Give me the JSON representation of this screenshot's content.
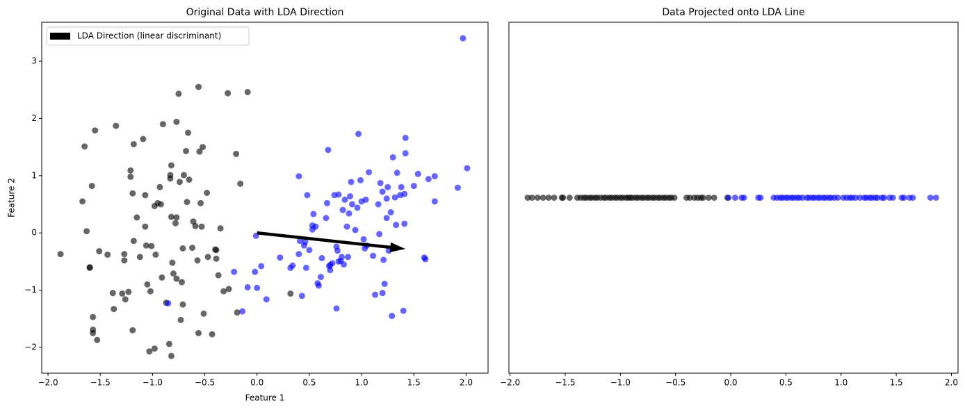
{
  "chart_data": [
    {
      "type": "scatter",
      "title": "Original Data with LDA Direction",
      "xlabel": "Feature 1",
      "ylabel": "Feature 2",
      "xlim": [
        -2.06,
        2.21
      ],
      "ylim": [
        -2.45,
        3.68
      ],
      "xticks": [
        {
          "value": -2,
          "label": "−2.0"
        },
        {
          "value": -1.5,
          "label": "−1.5"
        },
        {
          "value": -1,
          "label": "−1.0"
        },
        {
          "value": -0.5,
          "label": "−0.5"
        },
        {
          "value": 0,
          "label": "0.0"
        },
        {
          "value": 0.5,
          "label": "0.5"
        },
        {
          "value": 1,
          "label": "1.0"
        },
        {
          "value": 1.5,
          "label": "1.5"
        },
        {
          "value": 2,
          "label": "2.0"
        }
      ],
      "yticks": [
        {
          "value": -2,
          "label": "−2"
        },
        {
          "value": -1,
          "label": "−1"
        },
        0,
        1,
        2,
        3
      ],
      "legend": "upper left",
      "arrow": {
        "label": "LDA Direction (linear discriminant)",
        "color": "#000000",
        "x": [
          0,
          1.42
        ],
        "y": [
          0,
          -0.28
        ]
      },
      "series": [
        {
          "color": "#000000",
          "x": [
            -1.88,
            -1.67,
            -1.65,
            -1.63,
            -1.6,
            -1.6,
            -1.58,
            -1.57,
            -1.57,
            -1.57,
            -1.55,
            -1.53,
            -1.51,
            -1.43,
            -1.38,
            -1.37,
            -1.35,
            -1.29,
            -1.27,
            -1.27,
            -1.26,
            -1.23,
            -1.21,
            -1.21,
            -1.19,
            -1.19,
            -1.18,
            -1.18,
            -1.15,
            -1.12,
            -1.09,
            -1.07,
            -1.07,
            -1.06,
            -1.05,
            -1.03,
            -1.02,
            -1.01,
            -0.98,
            -0.98,
            -0.97,
            -0.95,
            -0.93,
            -0.92,
            -0.91,
            -0.9,
            -0.87,
            -0.84,
            -0.83,
            -0.83,
            -0.82,
            -0.82,
            -0.82,
            -0.81,
            -0.8,
            -0.78,
            -0.77,
            -0.77,
            -0.77,
            -0.75,
            -0.74,
            -0.73,
            -0.72,
            -0.71,
            -0.71,
            -0.7,
            -0.68,
            -0.67,
            -0.66,
            -0.65,
            -0.62,
            -0.61,
            -0.59,
            -0.57,
            -0.56,
            -0.56,
            -0.55,
            -0.54,
            -0.53,
            -0.52,
            -0.51,
            -0.48,
            -0.47,
            -0.43,
            -0.4,
            -0.39,
            -0.39,
            -0.37,
            -0.35,
            -0.32,
            -0.28,
            -0.27,
            -0.2,
            -0.19,
            -0.16,
            -0.09,
            0.32
          ],
          "y": [
            -0.37,
            0.55,
            1.51,
            0.03,
            -0.61,
            -0.6,
            0.82,
            -1.47,
            -1.69,
            -1.75,
            1.79,
            -1.87,
            -0.32,
            -0.38,
            -1.05,
            -1.33,
            1.87,
            -1.06,
            -0.37,
            -0.48,
            -1.16,
            -1.03,
            1.09,
            0.98,
            -1.7,
            0.69,
            -0.14,
            1.55,
            0.27,
            -0.42,
            1.64,
            0.66,
            0.11,
            -0.22,
            -0.9,
            -2.07,
            -1.02,
            -0.23,
            0.47,
            -2.02,
            -0.38,
            0.52,
            0.8,
            0.5,
            -0.78,
            1.9,
            -1.22,
            -1.94,
            0.95,
            1.01,
            1.18,
            -2.15,
            0.28,
            -0.52,
            -0.71,
            0.17,
            0.27,
            1.94,
            -0.8,
            2.43,
            0.89,
            -1.52,
            -0.86,
            -1.25,
            -0.27,
            1.01,
            1.43,
            0.54,
            1.75,
            0.93,
            -0.26,
            0.2,
            0.12,
            -0.48,
            2.55,
            -1.75,
            1.42,
            0.52,
            0.11,
            1.5,
            -1.41,
            0.7,
            -0.42,
            -1.77,
            -0.29,
            -0.3,
            -0.45,
            -0.74,
            0.08,
            -1.02,
            2.44,
            -0.98,
            1.38,
            -1.39,
            0.86,
            2.46,
            -1.06
          ]
        },
        {
          "color": "#0000ff",
          "x": [
            -0.85,
            -0.22,
            -0.14,
            -0.09,
            -0.02,
            -0.01,
            0,
            0.04,
            0.09,
            0.22,
            0.32,
            0.34,
            0.4,
            0.4,
            0.41,
            0.43,
            0.45,
            0.46,
            0.47,
            0.48,
            0.5,
            0.53,
            0.53,
            0.54,
            0.56,
            0.58,
            0.59,
            0.61,
            0.62,
            0.66,
            0.67,
            0.68,
            0.69,
            0.7,
            0.7,
            0.72,
            0.74,
            0.76,
            0.76,
            0.77,
            0.78,
            0.78,
            0.8,
            0.81,
            0.82,
            0.83,
            0.84,
            0.86,
            0.87,
            0.88,
            0.89,
            0.9,
            0.91,
            0.94,
            0.96,
            0.97,
            0.99,
            1,
            1.02,
            1.03,
            1.04,
            1.05,
            1.07,
            1.11,
            1.13,
            1.16,
            1.17,
            1.18,
            1.2,
            1.2,
            1.21,
            1.22,
            1.24,
            1.24,
            1.25,
            1.26,
            1.28,
            1.29,
            1.3,
            1.32,
            1.33,
            1.34,
            1.37,
            1.38,
            1.4,
            1.41,
            1.41,
            1.42,
            1.42,
            1.5,
            1.54,
            1.6,
            1.61,
            1.64,
            1.7,
            1.7,
            1.92,
            1.97,
            2.01
          ],
          "y": [
            -1.23,
            -0.68,
            -1.37,
            -0.95,
            -0.68,
            -0.05,
            -0.96,
            -0.58,
            -1.16,
            -0.43,
            -0.61,
            -0.57,
            -0.37,
            0.99,
            -0.14,
            -1.1,
            -0.22,
            -0.16,
            -0.61,
            0.66,
            -0.3,
            0.06,
            0.13,
            0.33,
            0.11,
            -0.88,
            -0.92,
            -0.77,
            -0.44,
            0.26,
            0.52,
            1.45,
            -0.58,
            -0.56,
            -0.65,
            -0.53,
            0.66,
            -1.32,
            -0.24,
            -0.31,
            0.67,
            -0.5,
            -0.49,
            -0.42,
            0.4,
            -0.55,
            0.58,
            0.11,
            -0.42,
            0.34,
            0.64,
            0.89,
            0.5,
            0.05,
            0.44,
            1.73,
            0.92,
            0.55,
            -0.11,
            -0.27,
            0.58,
            -0.22,
            1.06,
            -0.4,
            -1.08,
            0.5,
            -0.02,
            0.87,
            0.72,
            -1.05,
            -0.47,
            -0.89,
            0.26,
            0.6,
            0.8,
            -0.31,
            0.36,
            -1.45,
            1.32,
            0.62,
            0.14,
            1.05,
            0.66,
            0.8,
            -1.36,
            0.16,
            0.68,
            1.66,
            1.39,
            0.82,
            1.03,
            -0.43,
            -0.46,
            0.94,
            0.55,
            0.99,
            0.79,
            3.4,
            1.13
          ]
        }
      ]
    },
    {
      "type": "strip",
      "title": "Data Projected onto LDA Line",
      "xlim": [
        -2.01,
        2.06
      ],
      "xticks": [
        {
          "value": -2,
          "label": "−2.0"
        },
        {
          "value": -1.5,
          "label": "−1.5"
        },
        {
          "value": -1,
          "label": "−1.0"
        },
        {
          "value": -0.5,
          "label": "−0.5"
        },
        {
          "value": 0,
          "label": "0.0"
        },
        {
          "value": 0.5,
          "label": "0.5"
        },
        {
          "value": 1,
          "label": "1.0"
        },
        {
          "value": 1.5,
          "label": "1.5"
        },
        {
          "value": 2,
          "label": "2.0"
        }
      ],
      "series": [
        {
          "color": "#000000",
          "values": [
            -1.84,
            -1.8,
            -1.75,
            -1.7,
            -1.65,
            -1.6,
            -1.53,
            -1.52,
            -1.46,
            -1.39,
            -1.36,
            -1.33,
            -1.31,
            -1.28,
            -1.26,
            -1.23,
            -1.21,
            -1.18,
            -1.15,
            -1.13,
            -1.1,
            -1.08,
            -1.05,
            -1.03,
            -1,
            -0.98,
            -0.95,
            -0.93,
            -0.91,
            -0.89,
            -0.86,
            -0.84,
            -0.81,
            -0.79,
            -0.76,
            -0.74,
            -0.71,
            -0.69,
            -0.66,
            -0.64,
            -0.61,
            -0.59,
            -0.56,
            -0.54,
            -0.51,
            -0.4,
            -0.37,
            -0.33,
            -0.3,
            -0.27,
            -0.25,
            -0.2,
            -0.15,
            -0.03
          ]
        },
        {
          "color": "#0000ff",
          "values": [
            -0.02,
            0.04,
            0.1,
            0.12,
            0.25,
            0.27,
            0.39,
            0.42,
            0.45,
            0.47,
            0.5,
            0.52,
            0.55,
            0.57,
            0.6,
            0.62,
            0.65,
            0.69,
            0.71,
            0.74,
            0.76,
            0.79,
            0.81,
            0.84,
            0.86,
            0.89,
            0.91,
            0.94,
            0.97,
            1.02,
            1.05,
            1.08,
            1.1,
            1.13,
            1.17,
            1.21,
            1.23,
            1.26,
            1.28,
            1.31,
            1.33,
            1.37,
            1.39,
            1.44,
            1.47,
            1.55,
            1.57,
            1.62,
            1.65,
            1.81,
            1.86
          ]
        }
      ]
    }
  ]
}
